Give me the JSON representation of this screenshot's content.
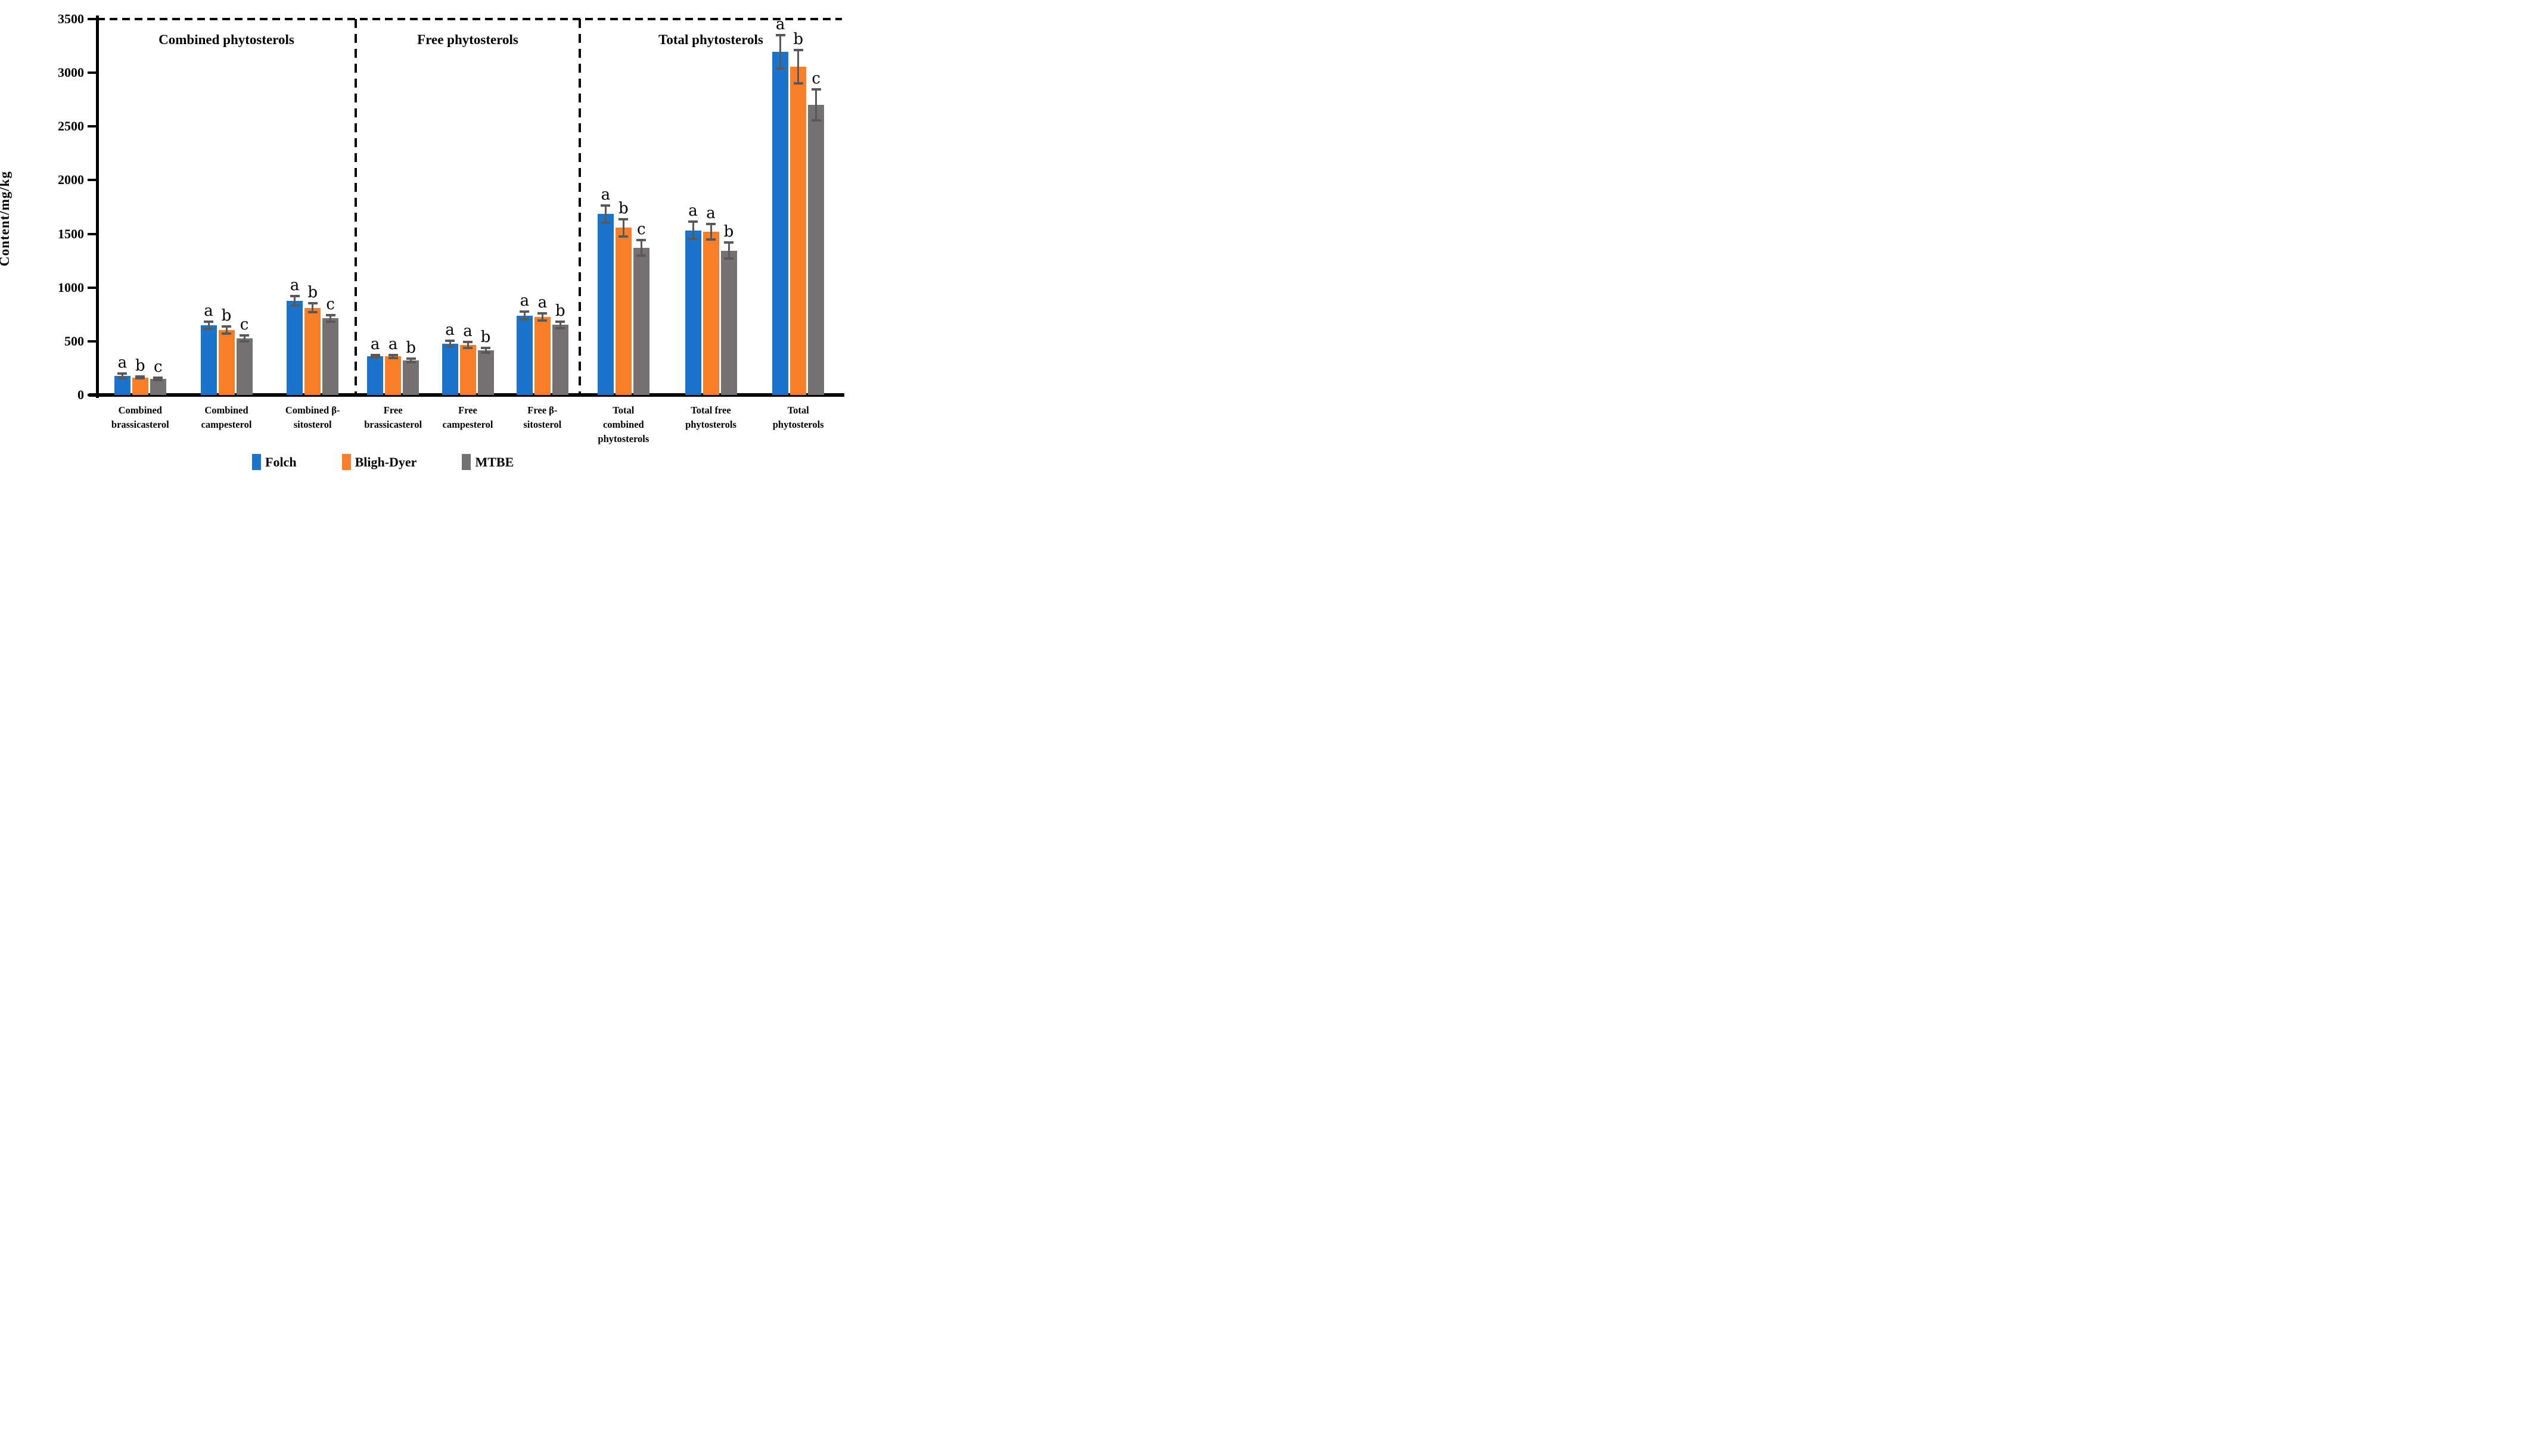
{
  "chart_data": {
    "type": "bar",
    "ylabel": "Content/mg/kg",
    "ylim": [
      0,
      3500
    ],
    "yticks": [
      0,
      500,
      1000,
      1500,
      2000,
      2500,
      3000,
      3500
    ],
    "grid": "none",
    "top_boundary_line": "dashed at y=3500",
    "section_separators": "vertical dashed lines between sections",
    "legend_position": "bottom",
    "sections": [
      {
        "label": "Combined phytosterols",
        "category_indexes": [
          0,
          1,
          2
        ]
      },
      {
        "label": "Free phytosterols",
        "category_indexes": [
          3,
          4,
          5
        ]
      },
      {
        "label": "Total phytosterols",
        "category_indexes": [
          6,
          7,
          8
        ]
      }
    ],
    "categories": [
      {
        "lines": [
          "Combined",
          "brassicasterol"
        ]
      },
      {
        "lines": [
          "Combined",
          "campesterol"
        ]
      },
      {
        "lines": [
          "Combined β-",
          "sitosterol"
        ]
      },
      {
        "lines": [
          "Free",
          "brassicasterol"
        ]
      },
      {
        "lines": [
          "Free",
          "campesterol"
        ]
      },
      {
        "lines": [
          "Free β-",
          "sitosterol"
        ]
      },
      {
        "lines": [
          "Total",
          "combined",
          "phytosterols"
        ]
      },
      {
        "lines": [
          "Total free",
          "phytosterols"
        ]
      },
      {
        "lines": [
          "Total",
          "phytosterols"
        ]
      }
    ],
    "series": [
      {
        "name": "Folch",
        "color": "#1B74CB",
        "values": [
          178,
          650,
          875,
          362,
          478,
          740,
          1685,
          1532,
          3195
        ],
        "errors": [
          22,
          35,
          45,
          12,
          27,
          38,
          80,
          80,
          155
        ],
        "letters": [
          "a",
          "a",
          "a",
          "a",
          "a",
          "a",
          "a",
          "a",
          "a"
        ]
      },
      {
        "name": "Bligh-Dyer",
        "color": "#FA7E27",
        "values": [
          163,
          606,
          812,
          358,
          466,
          726,
          1558,
          1520,
          3058
        ],
        "errors": [
          8,
          32,
          42,
          14,
          26,
          33,
          80,
          73,
          155
        ],
        "letters": [
          "b",
          "b",
          "b",
          "a",
          "a",
          "a",
          "b",
          "a",
          "b"
        ]
      },
      {
        "name": "MTBE",
        "color": "#767171",
        "values": [
          148,
          528,
          713,
          320,
          416,
          652,
          1370,
          1345,
          2700
        ],
        "errors": [
          12,
          28,
          33,
          17,
          22,
          31,
          70,
          74,
          145
        ],
        "letters": [
          "c",
          "c",
          "c",
          "b",
          "b",
          "b",
          "c",
          "b",
          "c"
        ]
      }
    ],
    "error_bar_color": "#595959",
    "axis_color": "#000000"
  }
}
